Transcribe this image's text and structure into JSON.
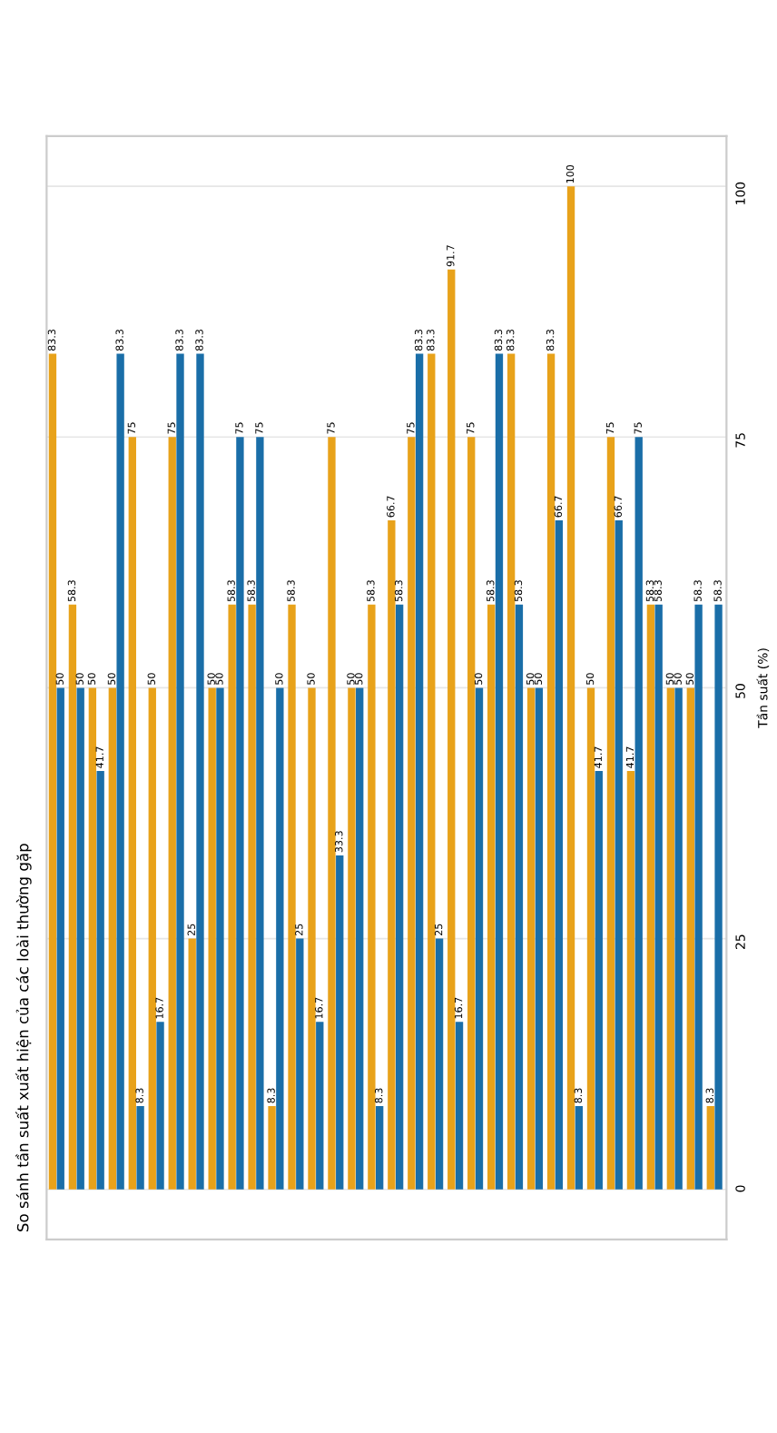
{
  "chart_data": {
    "type": "bar",
    "title": "So sánh tần suất xuất hiện của các loài thường gặp",
    "ylabel": "Tần suất (%)",
    "categories": [
      null,
      null,
      null,
      null,
      null,
      null,
      null,
      null,
      null,
      null,
      null,
      null,
      null,
      null,
      null,
      null,
      null,
      null,
      null,
      null,
      null,
      null,
      null,
      null,
      null,
      null,
      null,
      null,
      null,
      null,
      null,
      null,
      null,
      null
    ],
    "series": [
      {
        "color": "#e8a21a",
        "values": [
          83.3,
          58.3,
          50,
          50,
          75,
          50,
          75,
          25,
          50,
          58.3,
          58.3,
          8.3,
          58.3,
          50,
          75,
          50,
          58.3,
          66.7,
          75,
          83.3,
          91.7,
          75,
          58.3,
          83.3,
          50,
          83.3,
          100,
          50,
          75,
          41.7,
          58.3,
          50,
          50,
          8.3
        ]
      },
      {
        "color": "#1a6ea8",
        "values": [
          50,
          50,
          41.7,
          83.3,
          8.3,
          16.7,
          83.3,
          83.3,
          50,
          75,
          75,
          50,
          25,
          16.7,
          33.3,
          50,
          8.3,
          58.3,
          83.3,
          25,
          16.7,
          50,
          83.3,
          58.3,
          50,
          66.7,
          8.3,
          41.7,
          66.7,
          75,
          58.3,
          50,
          58.3,
          58.3
        ]
      }
    ],
    "ylim": [
      -5,
      105
    ],
    "yticks": [
      0,
      25,
      50,
      75,
      100
    ],
    "grid": "y",
    "data_labels": true
  }
}
